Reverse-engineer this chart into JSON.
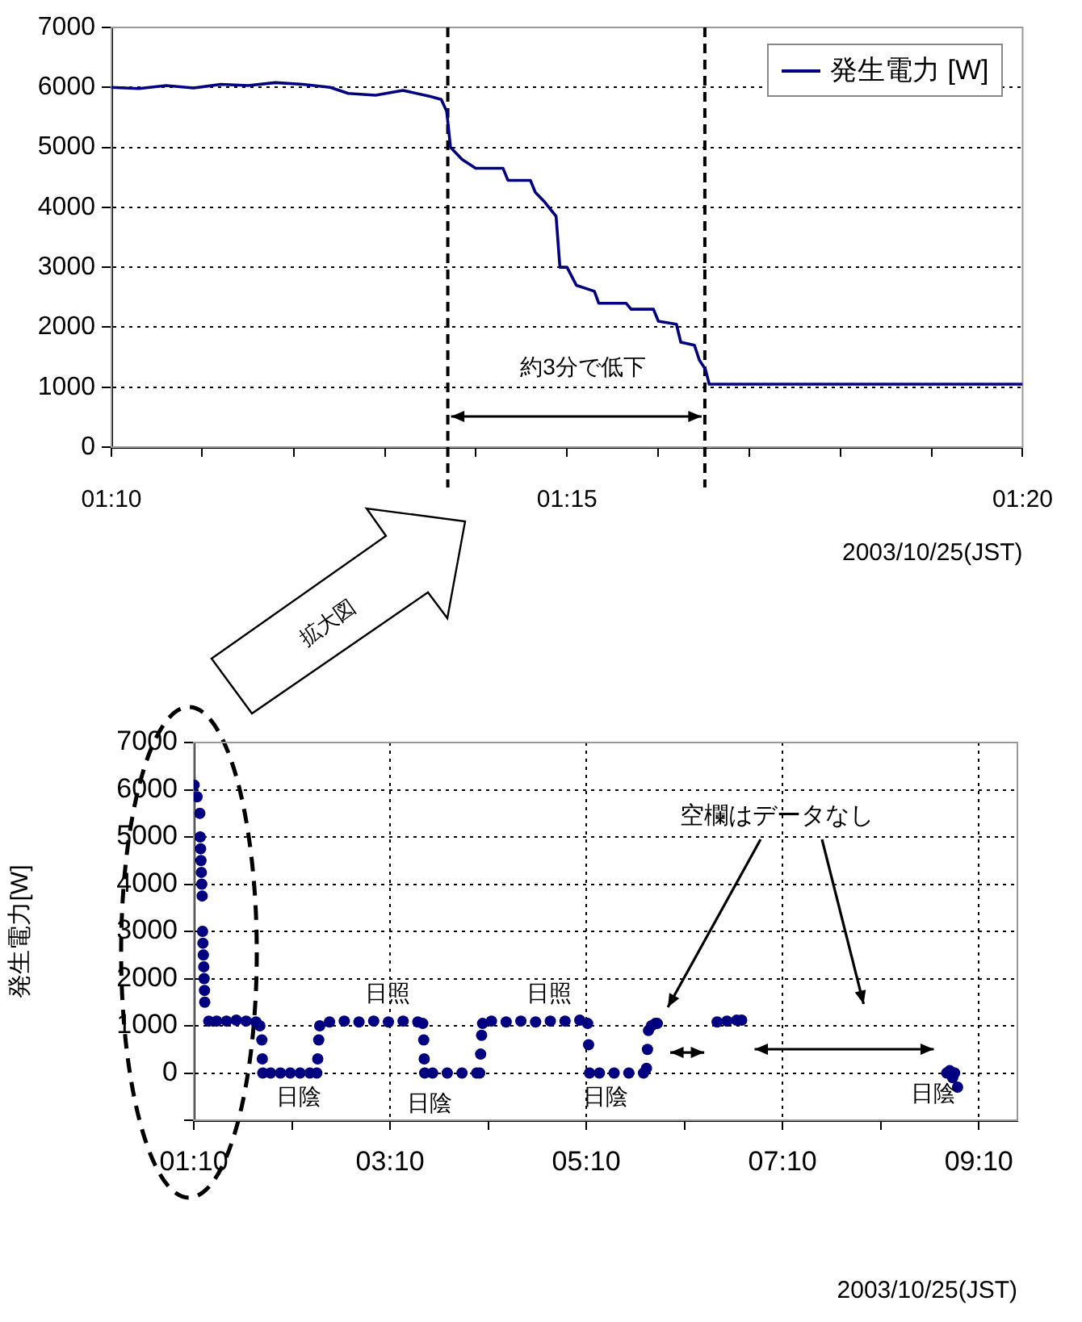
{
  "chart_data": [
    {
      "type": "line",
      "xlabel": "2003/10/25(JST)",
      "legend": "top right",
      "grid": "y",
      "marker": "none",
      "line_style": "solid",
      "x": [
        1.1667,
        1.1717,
        1.1767,
        1.1817,
        1.1867,
        1.1917,
        1.1967,
        1.2017,
        1.2067,
        1.21,
        1.215,
        1.22,
        1.225,
        1.227,
        1.228,
        1.2287,
        1.2308,
        1.2333,
        1.2383,
        1.2392,
        1.2433,
        1.2442,
        1.2458,
        1.248,
        1.2487,
        1.25,
        1.2517,
        1.255,
        1.2558,
        1.2608,
        1.2617,
        1.2658,
        1.2667,
        1.27,
        1.2708,
        1.2733,
        1.2742,
        1.2753,
        1.276,
        1.3333
      ],
      "series": [
        {
          "name": "発生電力 [W]",
          "color": "#000080",
          "values": [
            6000,
            5980,
            6030,
            5990,
            6050,
            6030,
            6080,
            6050,
            6000,
            5900,
            5870,
            5950,
            5850,
            5800,
            5600,
            5000,
            4800,
            4650,
            4650,
            4450,
            4450,
            4250,
            4100,
            3850,
            3000,
            3000,
            2700,
            2600,
            2400,
            2400,
            2300,
            2300,
            2100,
            2050,
            1750,
            1700,
            1450,
            1300,
            1050,
            1050
          ]
        }
      ],
      "xlim": [
        1.1667,
        1.3333
      ],
      "xticks": [
        {
          "value": 1.1667,
          "label": "01:10"
        },
        {
          "value": 1.1833,
          "label": null
        },
        {
          "value": 1.2,
          "label": null
        },
        {
          "value": 1.2167,
          "label": null
        },
        {
          "value": 1.2333,
          "label": null
        },
        {
          "value": 1.25,
          "label": "01:15"
        },
        {
          "value": 1.2667,
          "label": null
        },
        {
          "value": 1.2833,
          "label": null
        },
        {
          "value": 1.3,
          "label": null
        },
        {
          "value": 1.3167,
          "label": null
        },
        {
          "value": 1.3333,
          "label": "01:20"
        }
      ],
      "ylim": [
        0,
        7000
      ],
      "yticks": [
        0,
        1000,
        2000,
        3000,
        4000,
        5000,
        6000,
        7000
      ],
      "ref_lines": [
        {
          "axis": "x",
          "value": 1.2282,
          "color": "#000000",
          "line_style": "dashed"
        },
        {
          "axis": "x",
          "value": 1.2752,
          "color": "#000000",
          "line_style": "dashed"
        }
      ],
      "annotations": [
        "約3分で低下"
      ]
    },
    {
      "type": "scatter",
      "xlabel": "2003/10/25(JST)",
      "ylabel": "発生電力[W]",
      "grid": true,
      "marker": "circle",
      "x": [
        1.17,
        1.2,
        1.228,
        1.232,
        1.236,
        1.24,
        1.244,
        1.248,
        1.252,
        1.256,
        1.26,
        1.264,
        1.268,
        1.272,
        1.276,
        1.278,
        1.32,
        1.4,
        1.5,
        1.6,
        1.7,
        1.8,
        1.84,
        1.86,
        1.865,
        1.87,
        1.95,
        2.05,
        2.15,
        2.25,
        2.35,
        2.42,
        2.43,
        2.44,
        2.45,
        2.55,
        2.7,
        2.85,
        3.0,
        3.15,
        3.3,
        3.45,
        3.5,
        3.51,
        3.515,
        3.52,
        3.6,
        3.75,
        3.9,
        4.05,
        4.08,
        4.09,
        4.1,
        4.11,
        4.2,
        4.35,
        4.5,
        4.65,
        4.8,
        4.95,
        5.1,
        5.18,
        5.19,
        5.2,
        5.3,
        5.45,
        5.6,
        5.75,
        5.78,
        5.79,
        5.8,
        5.83,
        5.87,
        5.89,
        6.5,
        6.6,
        6.7,
        6.75,
        8.84,
        8.87,
        8.9,
        8.92,
        8.95
      ],
      "series": [
        {
          "color": "#000080",
          "values": [
            6100,
            5850,
            5500,
            5000,
            4750,
            4500,
            4250,
            4000,
            3750,
            3000,
            2750,
            2500,
            2250,
            2000,
            1750,
            1500,
            1100,
            1100,
            1100,
            1120,
            1100,
            1080,
            1000,
            700,
            300,
            0,
            0,
            0,
            0,
            0,
            0,
            0,
            300,
            700,
            1000,
            1080,
            1100,
            1080,
            1100,
            1080,
            1100,
            1080,
            1050,
            700,
            300,
            0,
            0,
            0,
            0,
            0,
            0,
            400,
            800,
            1050,
            1100,
            1080,
            1100,
            1080,
            1100,
            1100,
            1120,
            1050,
            600,
            0,
            0,
            0,
            0,
            0,
            100,
            500,
            900,
            1000,
            1050,
            1050,
            1080,
            1100,
            1120,
            1120,
            0,
            50,
            -100,
            0,
            -300
          ]
        }
      ],
      "xlim": [
        1.1667,
        9.56
      ],
      "xticks": [
        {
          "value": 1.1667,
          "label": "01:10"
        },
        {
          "value": 2.1667,
          "label": null
        },
        {
          "value": 3.1667,
          "label": "03:10"
        },
        {
          "value": 4.1667,
          "label": null
        },
        {
          "value": 5.1667,
          "label": "05:10"
        },
        {
          "value": 6.1667,
          "label": null
        },
        {
          "value": 7.1667,
          "label": "07:10"
        },
        {
          "value": 8.1667,
          "label": null
        },
        {
          "value": 9.1667,
          "label": "09:10"
        }
      ],
      "ylim": [
        -1000,
        7000
      ],
      "yticks": [
        {
          "value": -1000,
          "label": null
        },
        0,
        1000,
        2000,
        3000,
        4000,
        5000,
        6000,
        7000
      ],
      "annotations": [
        "拡大図",
        "日照",
        "日照",
        "日陰",
        "日陰",
        "日陰",
        "日陰",
        "空欄はデータなし"
      ]
    }
  ]
}
